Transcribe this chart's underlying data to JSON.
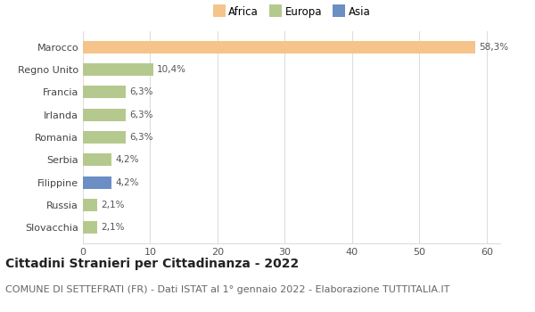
{
  "categories": [
    "Slovacchia",
    "Russia",
    "Filippine",
    "Serbia",
    "Romania",
    "Irlanda",
    "Francia",
    "Regno Unito",
    "Marocco"
  ],
  "values": [
    2.1,
    2.1,
    4.2,
    4.2,
    6.3,
    6.3,
    6.3,
    10.4,
    58.3
  ],
  "labels": [
    "2,1%",
    "2,1%",
    "4,2%",
    "4,2%",
    "6,3%",
    "6,3%",
    "6,3%",
    "10,4%",
    "58,3%"
  ],
  "colors": [
    "#b5c98e",
    "#b5c98e",
    "#6b8ec4",
    "#b5c98e",
    "#b5c98e",
    "#b5c98e",
    "#b5c98e",
    "#b5c98e",
    "#f5c48a"
  ],
  "legend_items": [
    {
      "label": "Africa",
      "color": "#f5c48a"
    },
    {
      "label": "Europa",
      "color": "#b5c98e"
    },
    {
      "label": "Asia",
      "color": "#6b8ec4"
    }
  ],
  "xlim": [
    0,
    62
  ],
  "xticks": [
    0,
    10,
    20,
    30,
    40,
    50,
    60
  ],
  "title": "Cittadini Stranieri per Cittadinanza - 2022",
  "subtitle": "COMUNE DI SETTEFRATI (FR) - Dati ISTAT al 1° gennaio 2022 - Elaborazione TUTTITALIA.IT",
  "title_fontsize": 10,
  "subtitle_fontsize": 8,
  "background_color": "#ffffff",
  "grid_color": "#dddddd",
  "bar_height": 0.55
}
